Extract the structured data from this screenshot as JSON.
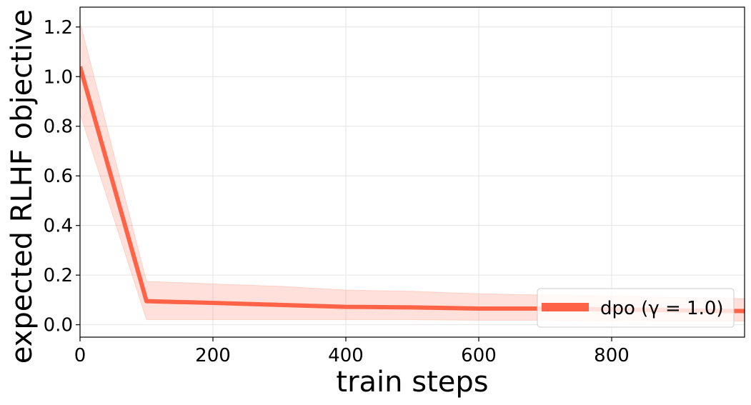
{
  "chart_data": {
    "type": "line",
    "title": "",
    "xlabel": "train steps",
    "ylabel": "expected RLHF objective",
    "xlim": [
      0,
      1000
    ],
    "ylim": [
      -0.05,
      1.28
    ],
    "xticks": [
      0,
      200,
      400,
      600,
      800
    ],
    "xtick_labels": [
      "0",
      "200",
      "400",
      "600",
      "800"
    ],
    "yticks": [
      0.0,
      0.2,
      0.4,
      0.6,
      0.8,
      1.0,
      1.2
    ],
    "ytick_labels": [
      "0.0",
      "0.2",
      "0.4",
      "0.6",
      "0.8",
      "1.0",
      "1.2"
    ],
    "grid": true,
    "legend_position": "bottom-right",
    "series": [
      {
        "name": "dpo (γ = 1.0)",
        "color": "#ff6347",
        "band_color": "#ff6347",
        "x": [
          0,
          100,
          200,
          300,
          400,
          500,
          600,
          700,
          800,
          900,
          1000
        ],
        "y": [
          1.04,
          0.095,
          0.088,
          0.08,
          0.072,
          0.07,
          0.065,
          0.065,
          0.062,
          0.058,
          0.055
        ],
        "y_lower": [
          0.85,
          0.02,
          0.02,
          0.02,
          0.02,
          0.02,
          0.018,
          0.018,
          0.016,
          0.015,
          0.015
        ],
        "y_upper": [
          1.22,
          0.175,
          0.165,
          0.155,
          0.14,
          0.135,
          0.125,
          0.12,
          0.115,
          0.11,
          0.105
        ]
      }
    ]
  }
}
